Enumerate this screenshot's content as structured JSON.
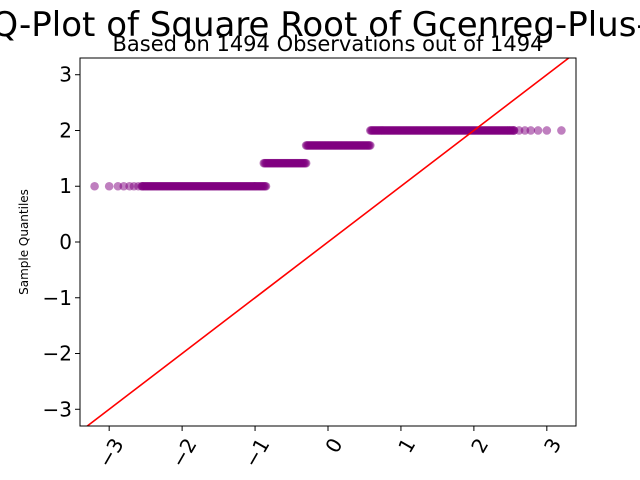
{
  "chart_data": {
    "type": "scatter",
    "title": "Q-Plot of Square Root of Gcenreg-Plus-",
    "subtitle": "Based on 1494 Observations out of 1494",
    "xlabel": "",
    "ylabel": "Sample Quantiles",
    "xlim": [
      -3.4,
      3.4
    ],
    "ylim": [
      -3.3,
      3.3
    ],
    "xticks": [
      -3,
      -2,
      -1,
      0,
      1,
      2,
      3
    ],
    "yticks": [
      -3,
      -2,
      -1,
      0,
      1,
      2,
      3
    ],
    "xtick_labels": [
      "−3",
      "−2",
      "−1",
      "0",
      "1",
      "2",
      "3"
    ],
    "ytick_labels": [
      "−3",
      "−2",
      "−1",
      "0",
      "1",
      "2",
      "3"
    ],
    "grid": false,
    "colors": {
      "points": "#800080",
      "reference_line": "#ff0000"
    },
    "reference_line": {
      "slope": 1,
      "intercept": 0
    },
    "series": [
      {
        "y": 1.0,
        "x_start": -3.2,
        "x_end": -0.85,
        "sparse_points": [
          -3.2,
          -3.0,
          -2.88,
          -2.8,
          -2.72,
          -2.66,
          -2.6,
          -2.55
        ]
      },
      {
        "y": 1.414,
        "x_start": -0.88,
        "x_end": -0.3,
        "sparse_points": []
      },
      {
        "y": 1.732,
        "x_start": -0.3,
        "x_end": 0.58,
        "sparse_points": []
      },
      {
        "y": 2.0,
        "x_start": 0.58,
        "x_end": 3.2,
        "sparse_points": [
          2.55,
          2.62,
          2.7,
          2.78,
          2.88,
          3.0,
          3.2
        ]
      }
    ]
  }
}
